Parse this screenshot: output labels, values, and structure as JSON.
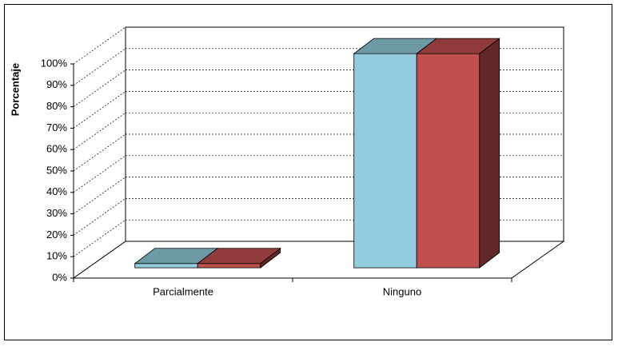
{
  "chart_data": {
    "type": "bar3d",
    "y_label": "Porcentaje",
    "categories": [
      "Parcialmente",
      "Ninguno"
    ],
    "series": [
      {
        "color": "#93cddd",
        "values": [
          2,
          100
        ]
      },
      {
        "color": "#c0504d",
        "values": [
          2,
          100
        ]
      }
    ],
    "ylim": [
      0,
      100
    ],
    "yticks": [
      {
        "value": 0,
        "label": "0%"
      },
      {
        "value": 10,
        "label": "10%"
      },
      {
        "value": 20,
        "label": "20%"
      },
      {
        "value": 30,
        "label": "30%"
      },
      {
        "value": 40,
        "label": "40%"
      },
      {
        "value": 50,
        "label": "50%"
      },
      {
        "value": 60,
        "label": "60%"
      },
      {
        "value": 70,
        "label": "70%"
      },
      {
        "value": 80,
        "label": "80%"
      },
      {
        "value": 90,
        "label": "90%"
      },
      {
        "value": 100,
        "label": "100%"
      }
    ],
    "grid": true
  }
}
